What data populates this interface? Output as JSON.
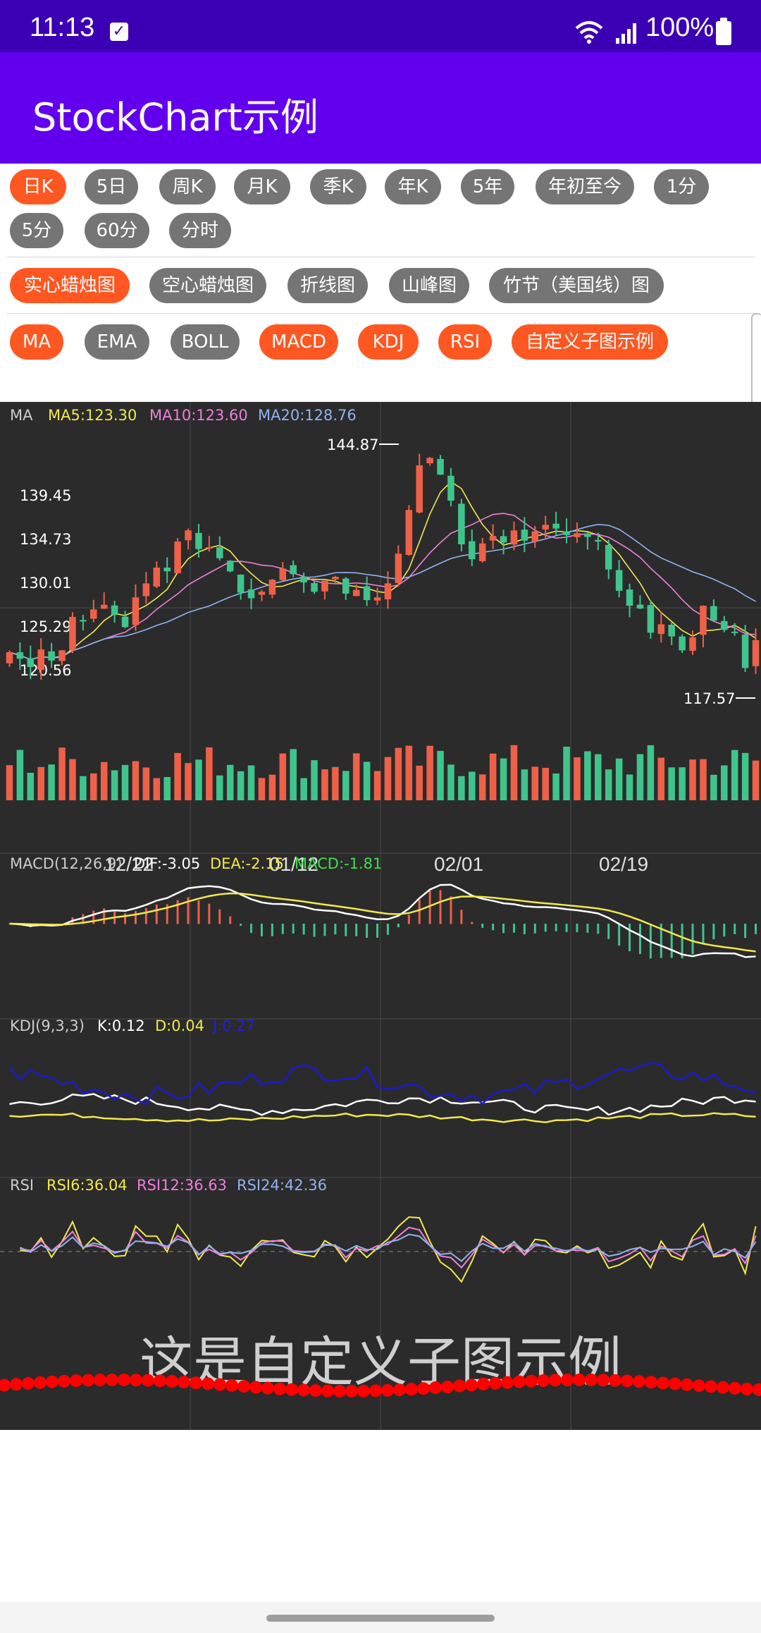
{
  "status": {
    "time": "11:13",
    "battery": "100%"
  },
  "app": {
    "title": "StockChart示例"
  },
  "periods": [
    "日K",
    "5日",
    "周K",
    "月K",
    "季K",
    "年K",
    "5年",
    "年初至今",
    "1分",
    "5分",
    "60分",
    "分时"
  ],
  "chart_types": [
    "实心蜡烛图",
    "空心蜡烛图",
    "折线图",
    "山峰图",
    "竹节（美国线）图"
  ],
  "indicators": [
    "MA",
    "EMA",
    "BOLL",
    "MACD",
    "KDJ",
    "RSI",
    "自定义子图示例"
  ],
  "legend": {
    "ma": {
      "name": "MA",
      "ma5": "MA5:123.30",
      "ma10": "MA10:123.60",
      "ma20": "MA20:128.76"
    },
    "macd": {
      "name": "MACD(12,26,9)",
      "dif": "DIF:-3.05",
      "dea": "DEA:-2.15",
      "macd": "MACD:-1.81"
    },
    "kdj": {
      "name": "KDJ(9,3,3)",
      "k": "K:0.12",
      "d": "D:0.04",
      "j": "J:0.27"
    },
    "rsi": {
      "name": "RSI",
      "rsi6": "RSI6:36.04",
      "rsi12": "RSI12:36.63",
      "rsi24": "RSI24:42.36"
    }
  },
  "custom_chart_text": "这是自定义子图示例",
  "colors": {
    "up": "#ee6148",
    "down": "#3fc48c",
    "ma5": "#f2e84c",
    "ma10": "#f07edb",
    "ma20": "#8fb3f0",
    "accent": "#ff5722",
    "appbar": "#6200ee"
  },
  "chart_data": {
    "type": "candlestick",
    "price_axis_labels": [
      "139.45",
      "134.73",
      "130.01",
      "125.29",
      "120.56"
    ],
    "high_label": "144.87",
    "low_label": "117.57",
    "x_tick_labels": [
      "12/22",
      "01/12",
      "02/01",
      "02/19"
    ],
    "close": [
      122.5,
      121.8,
      120.9,
      122.8,
      121.6,
      122.7,
      126.3,
      125.8,
      127.1,
      127.6,
      126.5,
      125.2,
      128.4,
      129.9,
      131.6,
      131.2,
      134.4,
      135.6,
      133.6,
      133.8,
      132.6,
      131.2,
      128.9,
      128.3,
      129.0,
      130.3,
      131.5,
      130.9,
      130.0,
      129.0,
      130.2,
      130.6,
      128.8,
      129.2,
      128.1,
      128.4,
      129.9,
      133.1,
      137.8,
      142.6,
      143.4,
      141.6,
      138.8,
      134.1,
      132.5,
      134.2,
      135.0,
      134.3,
      135.6,
      134.5,
      135.5,
      136.2,
      135.8,
      135.1,
      135.3,
      134.9,
      134.4,
      131.4,
      129.1,
      127.5,
      127.2,
      124.6,
      125.5,
      124.2,
      122.7,
      124.1,
      127.5,
      125.9,
      124.9,
      124.6,
      120.8,
      123.8
    ],
    "volume_axis": "relative"
  }
}
